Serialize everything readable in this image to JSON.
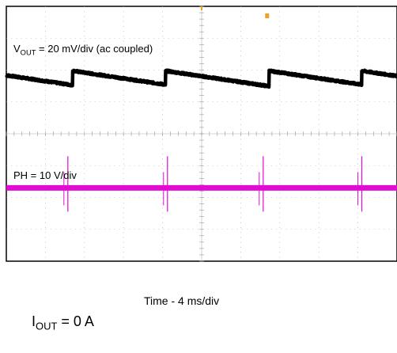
{
  "chart_data": {
    "type": "line",
    "title": "",
    "xlabel": "Time - 4 ms/div",
    "x_unit": "ms",
    "x_range": [
      0,
      40
    ],
    "divisions": {
      "horizontal": 10,
      "vertical": 8
    },
    "grid": true,
    "background": "#ffffff",
    "series": [
      {
        "name": "VOUT",
        "label_main": "V",
        "label_sub": "OUT",
        "label_rest": " = 20 mV/div (ac coupled)",
        "color": "#000000",
        "scale": "20 mV/div",
        "coupling": "ac",
        "waveform": "sawtooth",
        "offset_div": 1.75,
        "reset_times_ms": [
          6.8,
          16.3,
          26.9,
          36.4
        ],
        "ramp_amplitude_div": 0.45
      },
      {
        "name": "PH",
        "label": "PH = 10 V/div",
        "color": "#e20bd4",
        "scale": "10 V/div",
        "baseline_div": 1.7,
        "pulse_times_ms": [
          6.3,
          16.5,
          26.3,
          36.4
        ]
      }
    ]
  },
  "annotations": {
    "iout_main": "I",
    "iout_sub": "OUT",
    "iout_rest": " = 0 A"
  },
  "trigger_marker_color": "#f0a020"
}
